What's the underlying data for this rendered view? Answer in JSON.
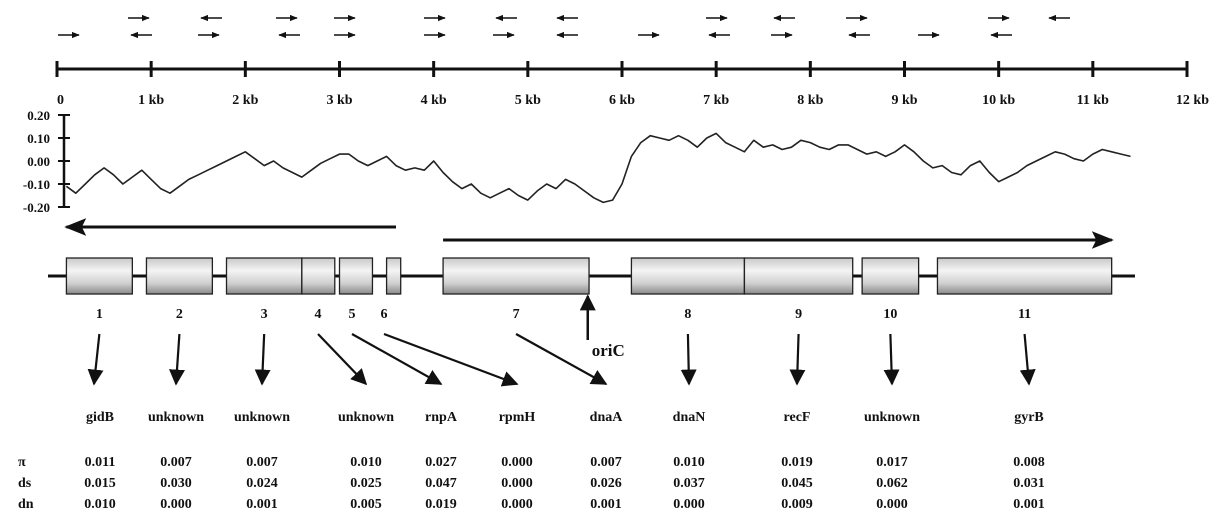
{
  "scale": {
    "unit_labels": [
      "0",
      "1 kb",
      "2 kb",
      "3 kb",
      "4 kb",
      "5 kb",
      "6 kb",
      "7 kb",
      "8 kb",
      "9 kb",
      "10 kb",
      "11 kb",
      "12 kb"
    ],
    "max_kb": 12
  },
  "primers": {
    "top_row": [
      "right",
      "left",
      "right",
      "right",
      "right",
      "left",
      "left",
      "right",
      "left",
      "right",
      "right",
      "left"
    ],
    "bottom_row": [
      "right",
      "left",
      "right",
      "left",
      "right",
      "right",
      "right",
      "left",
      "right",
      "left",
      "right",
      "left",
      "right",
      "left"
    ]
  },
  "chart_data": {
    "type": "line",
    "ylim": [
      -0.2,
      0.2
    ],
    "y_tick_labels": [
      "0.20",
      "0.10",
      "0.00",
      "-0.10",
      "-0.20"
    ],
    "x_range_kb": [
      0.1,
      11.4
    ],
    "series": [
      {
        "x": [
          0.1,
          0.2,
          0.3,
          0.4,
          0.5,
          0.6,
          0.7,
          0.8,
          0.9,
          1.0,
          1.1,
          1.2,
          1.3,
          1.4,
          1.5,
          1.6,
          1.7,
          1.8,
          1.9,
          2.0,
          2.1,
          2.2,
          2.3,
          2.4,
          2.5,
          2.6,
          2.7,
          2.8,
          2.9,
          3.0,
          3.1,
          3.2,
          3.3,
          3.4,
          3.5,
          3.6,
          3.7,
          3.8,
          3.9,
          4.0,
          4.1,
          4.2,
          4.3,
          4.4,
          4.5,
          4.6,
          4.7,
          4.8,
          4.9,
          5.0,
          5.1,
          5.2,
          5.3,
          5.4,
          5.5,
          5.6,
          5.7,
          5.8,
          5.9,
          6.0,
          6.1,
          6.2,
          6.3,
          6.4,
          6.5,
          6.6,
          6.7,
          6.8,
          6.9,
          7.0,
          7.1,
          7.2,
          7.3,
          7.4,
          7.5,
          7.6,
          7.7,
          7.8,
          7.9,
          8.0,
          8.1,
          8.2,
          8.3,
          8.4,
          8.5,
          8.6,
          8.7,
          8.8,
          8.9,
          9.0,
          9.1,
          9.2,
          9.3,
          9.4,
          9.5,
          9.6,
          9.7,
          9.8,
          9.9,
          10.0,
          10.1,
          10.2,
          10.3,
          10.4,
          10.5,
          10.6,
          10.7,
          10.8,
          10.9,
          11.0,
          11.1,
          11.2,
          11.3,
          11.4
        ],
        "y": [
          -0.11,
          -0.14,
          -0.1,
          -0.06,
          -0.03,
          -0.06,
          -0.1,
          -0.07,
          -0.04,
          -0.08,
          -0.12,
          -0.14,
          -0.11,
          -0.08,
          -0.06,
          -0.04,
          -0.02,
          0.0,
          0.02,
          0.04,
          0.01,
          -0.02,
          0.0,
          -0.03,
          -0.05,
          -0.07,
          -0.04,
          -0.01,
          0.01,
          0.03,
          0.03,
          0.0,
          -0.02,
          0.0,
          0.02,
          -0.02,
          -0.04,
          -0.03,
          -0.04,
          0.0,
          -0.05,
          -0.09,
          -0.12,
          -0.1,
          -0.14,
          -0.16,
          -0.14,
          -0.12,
          -0.15,
          -0.17,
          -0.13,
          -0.1,
          -0.12,
          -0.08,
          -0.1,
          -0.13,
          -0.16,
          -0.18,
          -0.17,
          -0.1,
          0.02,
          0.08,
          0.11,
          0.1,
          0.09,
          0.11,
          0.09,
          0.06,
          0.1,
          0.12,
          0.08,
          0.06,
          0.04,
          0.09,
          0.06,
          0.07,
          0.05,
          0.06,
          0.09,
          0.08,
          0.06,
          0.05,
          0.07,
          0.07,
          0.05,
          0.03,
          0.04,
          0.02,
          0.04,
          0.07,
          0.04,
          0.0,
          -0.03,
          -0.02,
          -0.05,
          -0.06,
          -0.02,
          0.0,
          -0.05,
          -0.09,
          -0.07,
          -0.05,
          -0.02,
          0.0,
          0.02,
          0.04,
          0.03,
          0.01,
          0.0,
          0.03,
          0.05,
          0.04,
          0.03,
          0.02
        ]
      }
    ]
  },
  "direction_arrows": [
    {
      "direction": "left",
      "start_kb": 3.6,
      "end_kb": 0.1
    },
    {
      "direction": "right",
      "start_kb": 4.1,
      "end_kb": 11.2
    }
  ],
  "genes": [
    {
      "number": "1",
      "name": "gidB",
      "start_kb": 0.1,
      "end_kb": 0.8,
      "pi": "0.011",
      "ds": "0.015",
      "dn": "0.010"
    },
    {
      "number": "2",
      "name": "unknown",
      "start_kb": 0.95,
      "end_kb": 1.65,
      "pi": "0.007",
      "ds": "0.030",
      "dn": "0.000"
    },
    {
      "number": "3",
      "name": "unknown",
      "start_kb": 1.8,
      "end_kb": 2.6,
      "pi": "0.007",
      "ds": "0.024",
      "dn": "0.001"
    },
    {
      "number": "4",
      "name": "unknown",
      "start_kb": 2.6,
      "end_kb": 2.95,
      "pi": "0.010",
      "ds": "0.025",
      "dn": "0.005"
    },
    {
      "number": "5",
      "name": "rnpA",
      "start_kb": 3.0,
      "end_kb": 3.35,
      "pi": "0.027",
      "ds": "0.047",
      "dn": "0.019"
    },
    {
      "number": "6",
      "name": "rpmH",
      "start_kb": 3.5,
      "end_kb": 3.65,
      "pi": "0.000",
      "ds": "0.000",
      "dn": "0.000"
    },
    {
      "number": "7",
      "name": "dnaA",
      "start_kb": 4.1,
      "end_kb": 5.65,
      "pi": "0.007",
      "ds": "0.026",
      "dn": "0.001"
    },
    {
      "number": "8",
      "name": "dnaN",
      "start_kb": 6.1,
      "end_kb": 7.3,
      "pi": "0.010",
      "ds": "0.037",
      "dn": "0.000"
    },
    {
      "number": "9",
      "name": "recF",
      "start_kb": 7.3,
      "end_kb": 8.45,
      "pi": "0.019",
      "ds": "0.045",
      "dn": "0.009"
    },
    {
      "number": "10",
      "name": "unknown",
      "start_kb": 8.55,
      "end_kb": 9.15,
      "pi": "0.017",
      "ds": "0.062",
      "dn": "0.000"
    },
    {
      "number": "11",
      "name": "gyrB",
      "start_kb": 9.35,
      "end_kb": 11.2,
      "pi": "0.008",
      "ds": "0.031",
      "dn": "0.001"
    }
  ],
  "origin": {
    "label": "oriC",
    "position_kb": 5.7
  },
  "stat_rows": [
    "π",
    "ds",
    "dn"
  ]
}
